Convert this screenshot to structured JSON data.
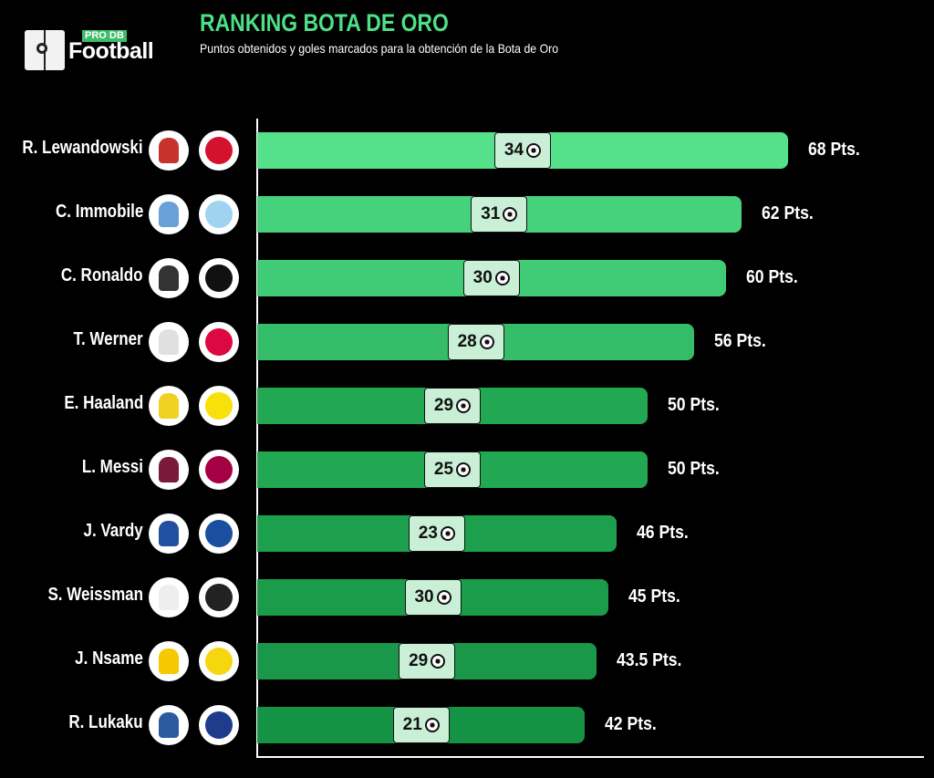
{
  "header": {
    "logo_badge": "PRO DB",
    "logo_text": "Football",
    "title": "RANKING BOTA DE ORO",
    "subtitle": "Puntos obtenidos y goles marcados para la obtención de la Bota de Oro"
  },
  "chart_data": {
    "type": "bar",
    "orientation": "horizontal",
    "title": "RANKING BOTA DE ORO",
    "subtitle": "Puntos obtenidos y goles marcados para la obtención de la Bota de Oro",
    "xlim": [
      0,
      68
    ],
    "categories": [
      "R. Lewandowski",
      "C. Immobile",
      "C. Ronaldo",
      "T. Werner",
      "E. Haaland",
      "L. Messi",
      "J. Vardy",
      "S. Weissman",
      "J. Nsame",
      "R. Lukaku"
    ],
    "series": [
      {
        "name": "Puntos",
        "values": [
          68,
          62,
          60,
          56,
          50,
          50,
          46,
          45,
          43.5,
          42
        ]
      },
      {
        "name": "Goles",
        "values": [
          34,
          31,
          30,
          28,
          29,
          25,
          23,
          30,
          29,
          21
        ]
      }
    ],
    "point_labels": [
      "68 Pts.",
      "62 Pts.",
      "60 Pts.",
      "56 Pts.",
      "50 Pts.",
      "50 Pts.",
      "46 Pts.",
      "45 Pts.",
      "43.5 Pts.",
      "42 Pts."
    ],
    "bar_colors": [
      "#55e08a",
      "#46d17c",
      "#40cb76",
      "#34bc68",
      "#22a853",
      "#22a853",
      "#1da04d",
      "#1a9c4a",
      "#189848",
      "#159345"
    ],
    "club_colors": [
      "#d5122e",
      "#9fd3f0",
      "#111111",
      "#dd0741",
      "#f8e10b",
      "#a50044",
      "#1b4ea0",
      "#222222",
      "#f5d60f",
      "#1e3c8c"
    ],
    "player_colors": [
      "#c8322c",
      "#6aa0d8",
      "#333333",
      "#e0e0e0",
      "#f0d020",
      "#7a1a3a",
      "#2050a0",
      "#eeeeee",
      "#f5c800",
      "#2a5aa0"
    ]
  }
}
